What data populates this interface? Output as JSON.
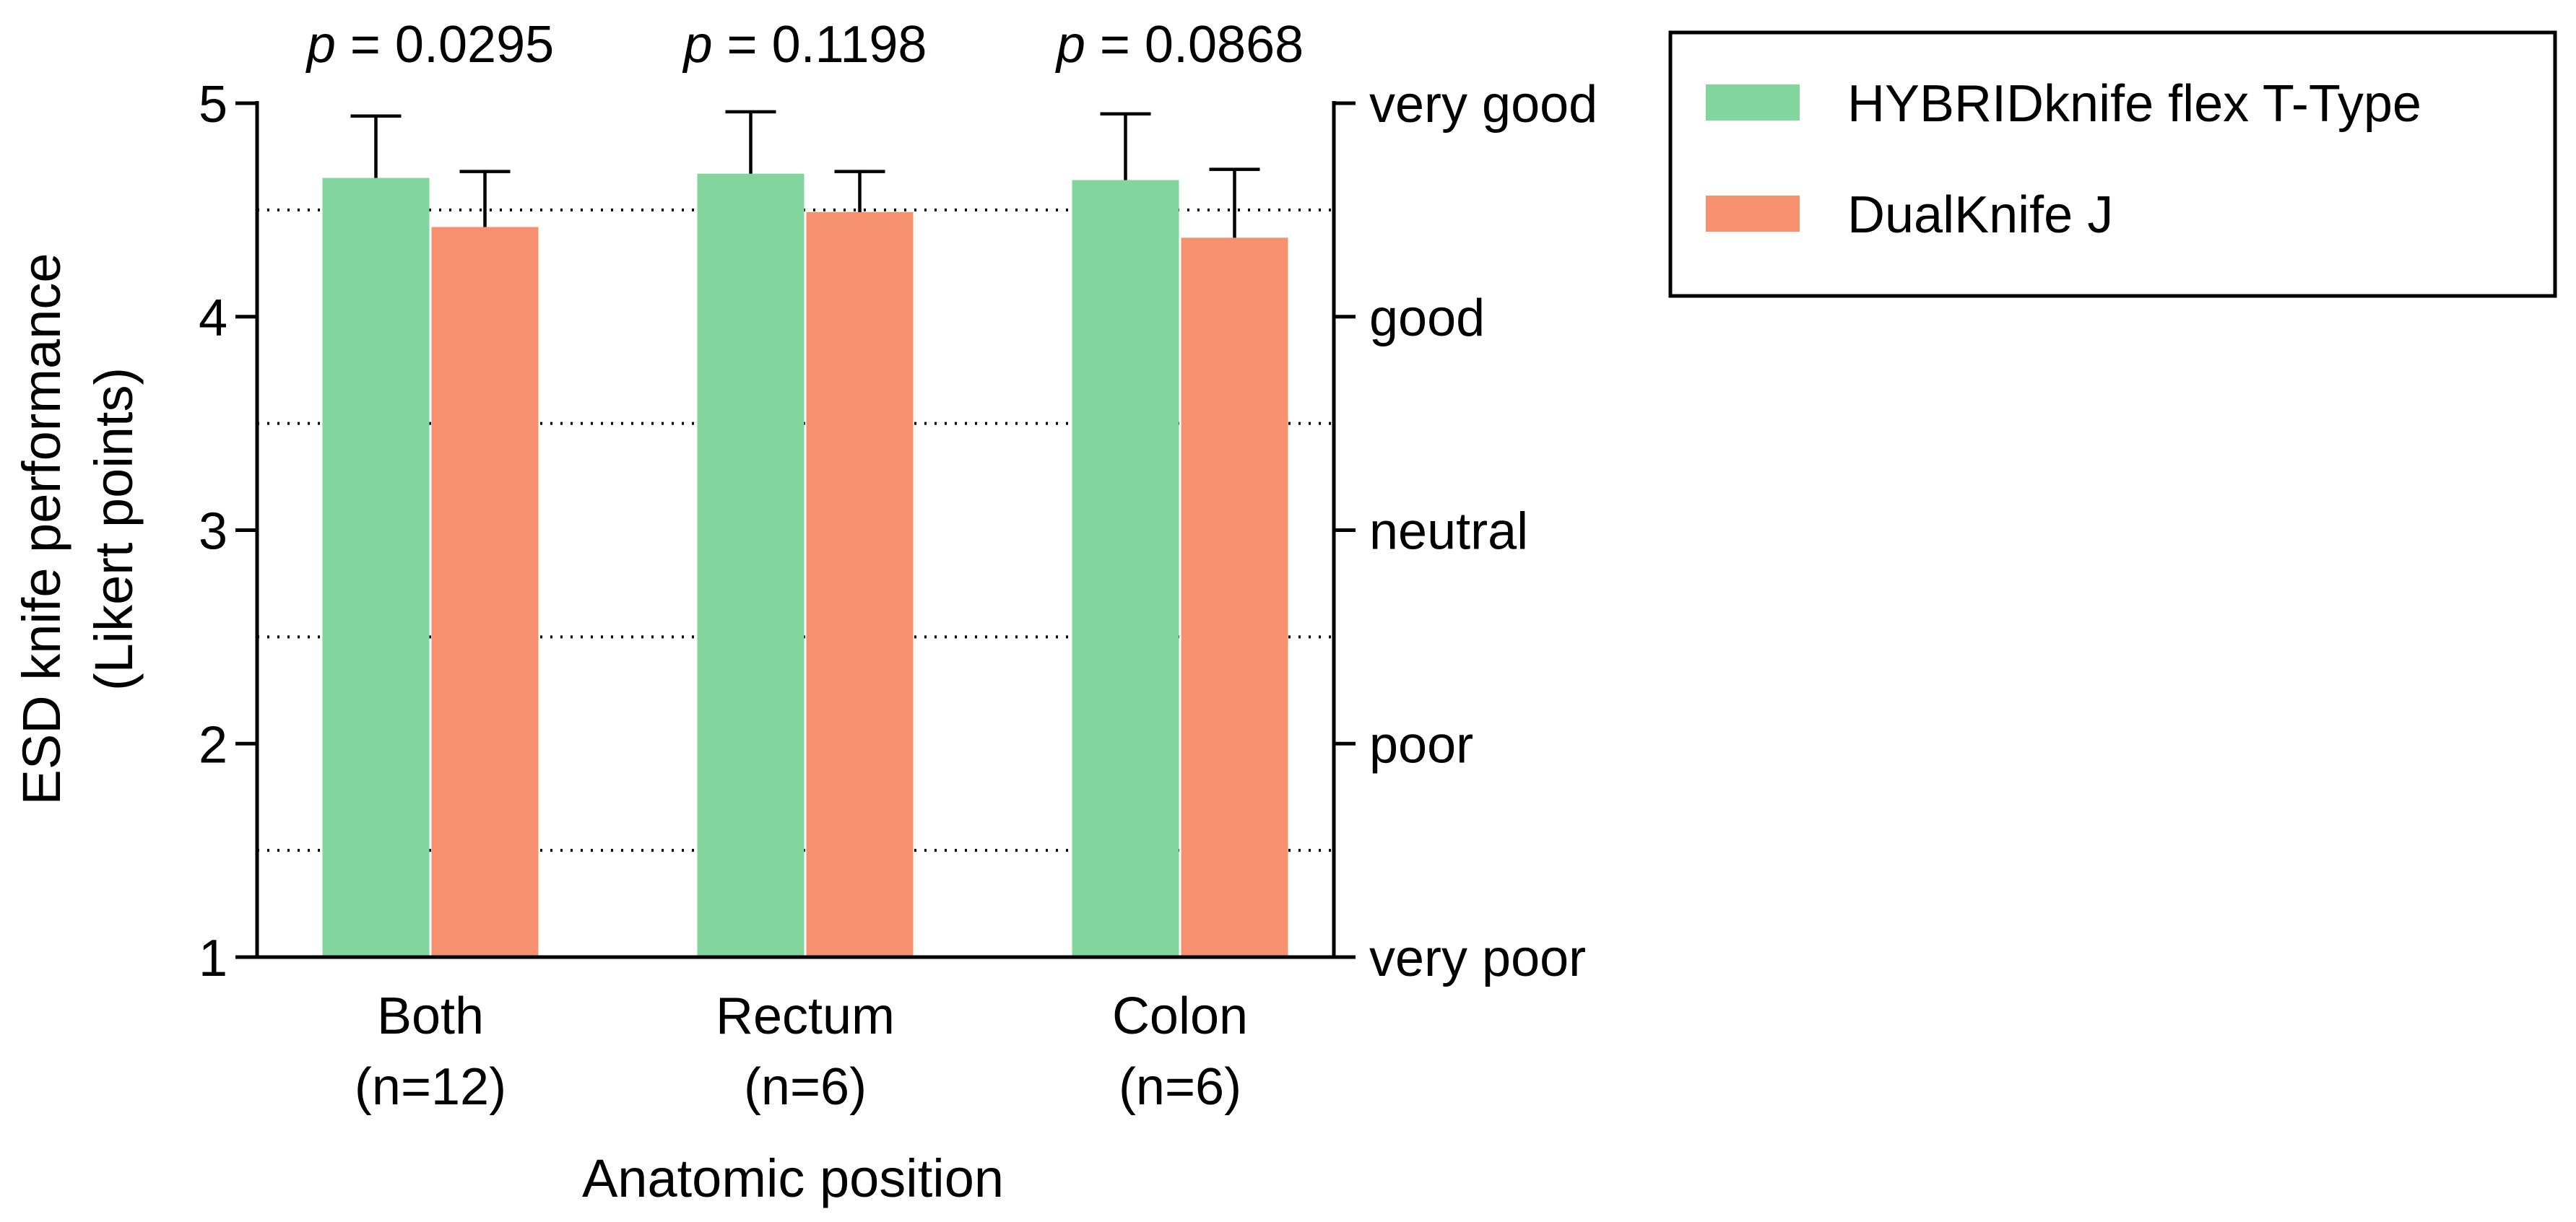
{
  "chart_data": {
    "type": "bar",
    "categories": [
      "Both",
      "Rectum",
      "Colon"
    ],
    "category_sublabels": [
      "(n=12)",
      "(n=6)",
      "(n=6)"
    ],
    "series": [
      {
        "name": "HYBRIDknife flex T-Type",
        "color": "#81D59D",
        "values": [
          4.65,
          4.67,
          4.64
        ],
        "error_upper": [
          0.29,
          0.29,
          0.31
        ]
      },
      {
        "name": "DualKnife J",
        "color": "#F6906F",
        "values": [
          4.42,
          4.49,
          4.37
        ],
        "error_upper": [
          0.26,
          0.19,
          0.32
        ]
      }
    ],
    "p_values": [
      {
        "prefix": "p",
        "text": " = 0.0295"
      },
      {
        "prefix": "p",
        "text": " = 0.1198"
      },
      {
        "prefix": "p",
        "text": " = 0.0868"
      }
    ],
    "xlabel": "Anatomic position",
    "ylabel": [
      "ESD knife performance",
      "(Likert points)"
    ],
    "ylim": [
      1,
      5
    ],
    "y_ticks": [
      "1",
      "2",
      "3",
      "4",
      "5"
    ],
    "right_axis_labels": [
      "very poor",
      "poor",
      "neutral",
      "good",
      "very good"
    ],
    "dotted_gridlines": [
      1.5,
      2.5,
      3.5,
      4.5
    ],
    "legend_position": "top-right"
  }
}
